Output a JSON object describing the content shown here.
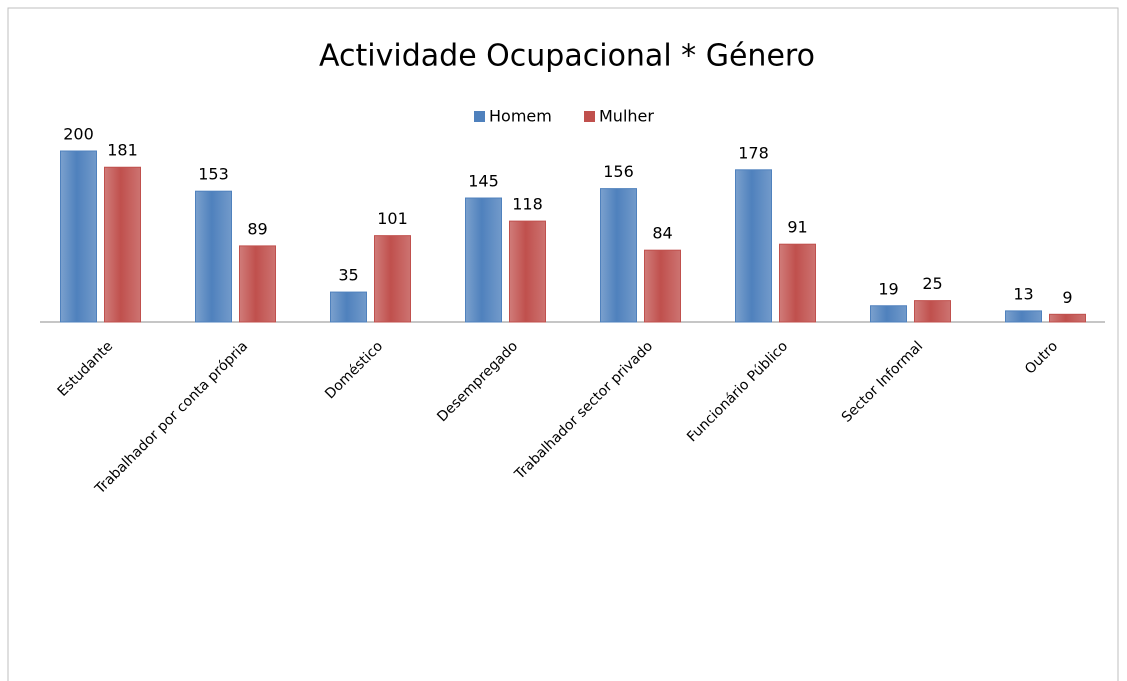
{
  "chart_data": {
    "type": "bar",
    "title": "Actividade Ocupacional * Género",
    "categories": [
      "Estudante",
      "Trabalhador por conta própria",
      "Doméstico",
      "Desempregado",
      "Trabalhador sector privado",
      "Funcionário Público",
      "Sector Informal",
      "Outro"
    ],
    "series": [
      {
        "name": "Homem",
        "color": "#4f81bd",
        "values": [
          200,
          153,
          35,
          145,
          156,
          178,
          19,
          13
        ]
      },
      {
        "name": "Mulher",
        "color": "#c0504d",
        "values": [
          181,
          89,
          101,
          118,
          84,
          91,
          25,
          9
        ]
      }
    ],
    "legend": "top"
  }
}
